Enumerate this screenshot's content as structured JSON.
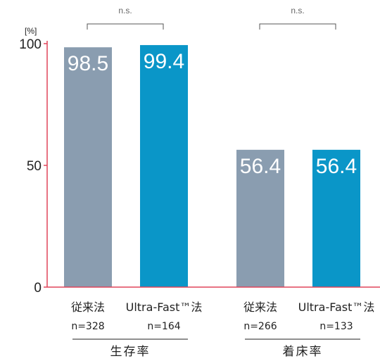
{
  "chart_data": {
    "type": "bar",
    "y_unit": "[%]",
    "ylim": [
      0,
      100
    ],
    "yticks": [
      0,
      50,
      100
    ],
    "grid": false,
    "groups": [
      {
        "label": "生存率",
        "significance": "n.s.",
        "bars": [
          {
            "category": "従来法",
            "n": "n=328",
            "value": 98.5,
            "color": "#8a9db0"
          },
          {
            "category": "Ultra-Fast™法",
            "n": "n=164",
            "value": 99.4,
            "color": "#0a96c8"
          }
        ]
      },
      {
        "label": "着床率",
        "significance": "n.s.",
        "bars": [
          {
            "category": "従来法",
            "n": "n=266",
            "value": 56.4,
            "color": "#8a9db0"
          },
          {
            "category": "Ultra-Fast™法",
            "n": "n=133",
            "value": 56.4,
            "color": "#0a96c8"
          }
        ]
      }
    ],
    "colors": {
      "axis": "#e0455a",
      "bracket": "#555555"
    }
  }
}
